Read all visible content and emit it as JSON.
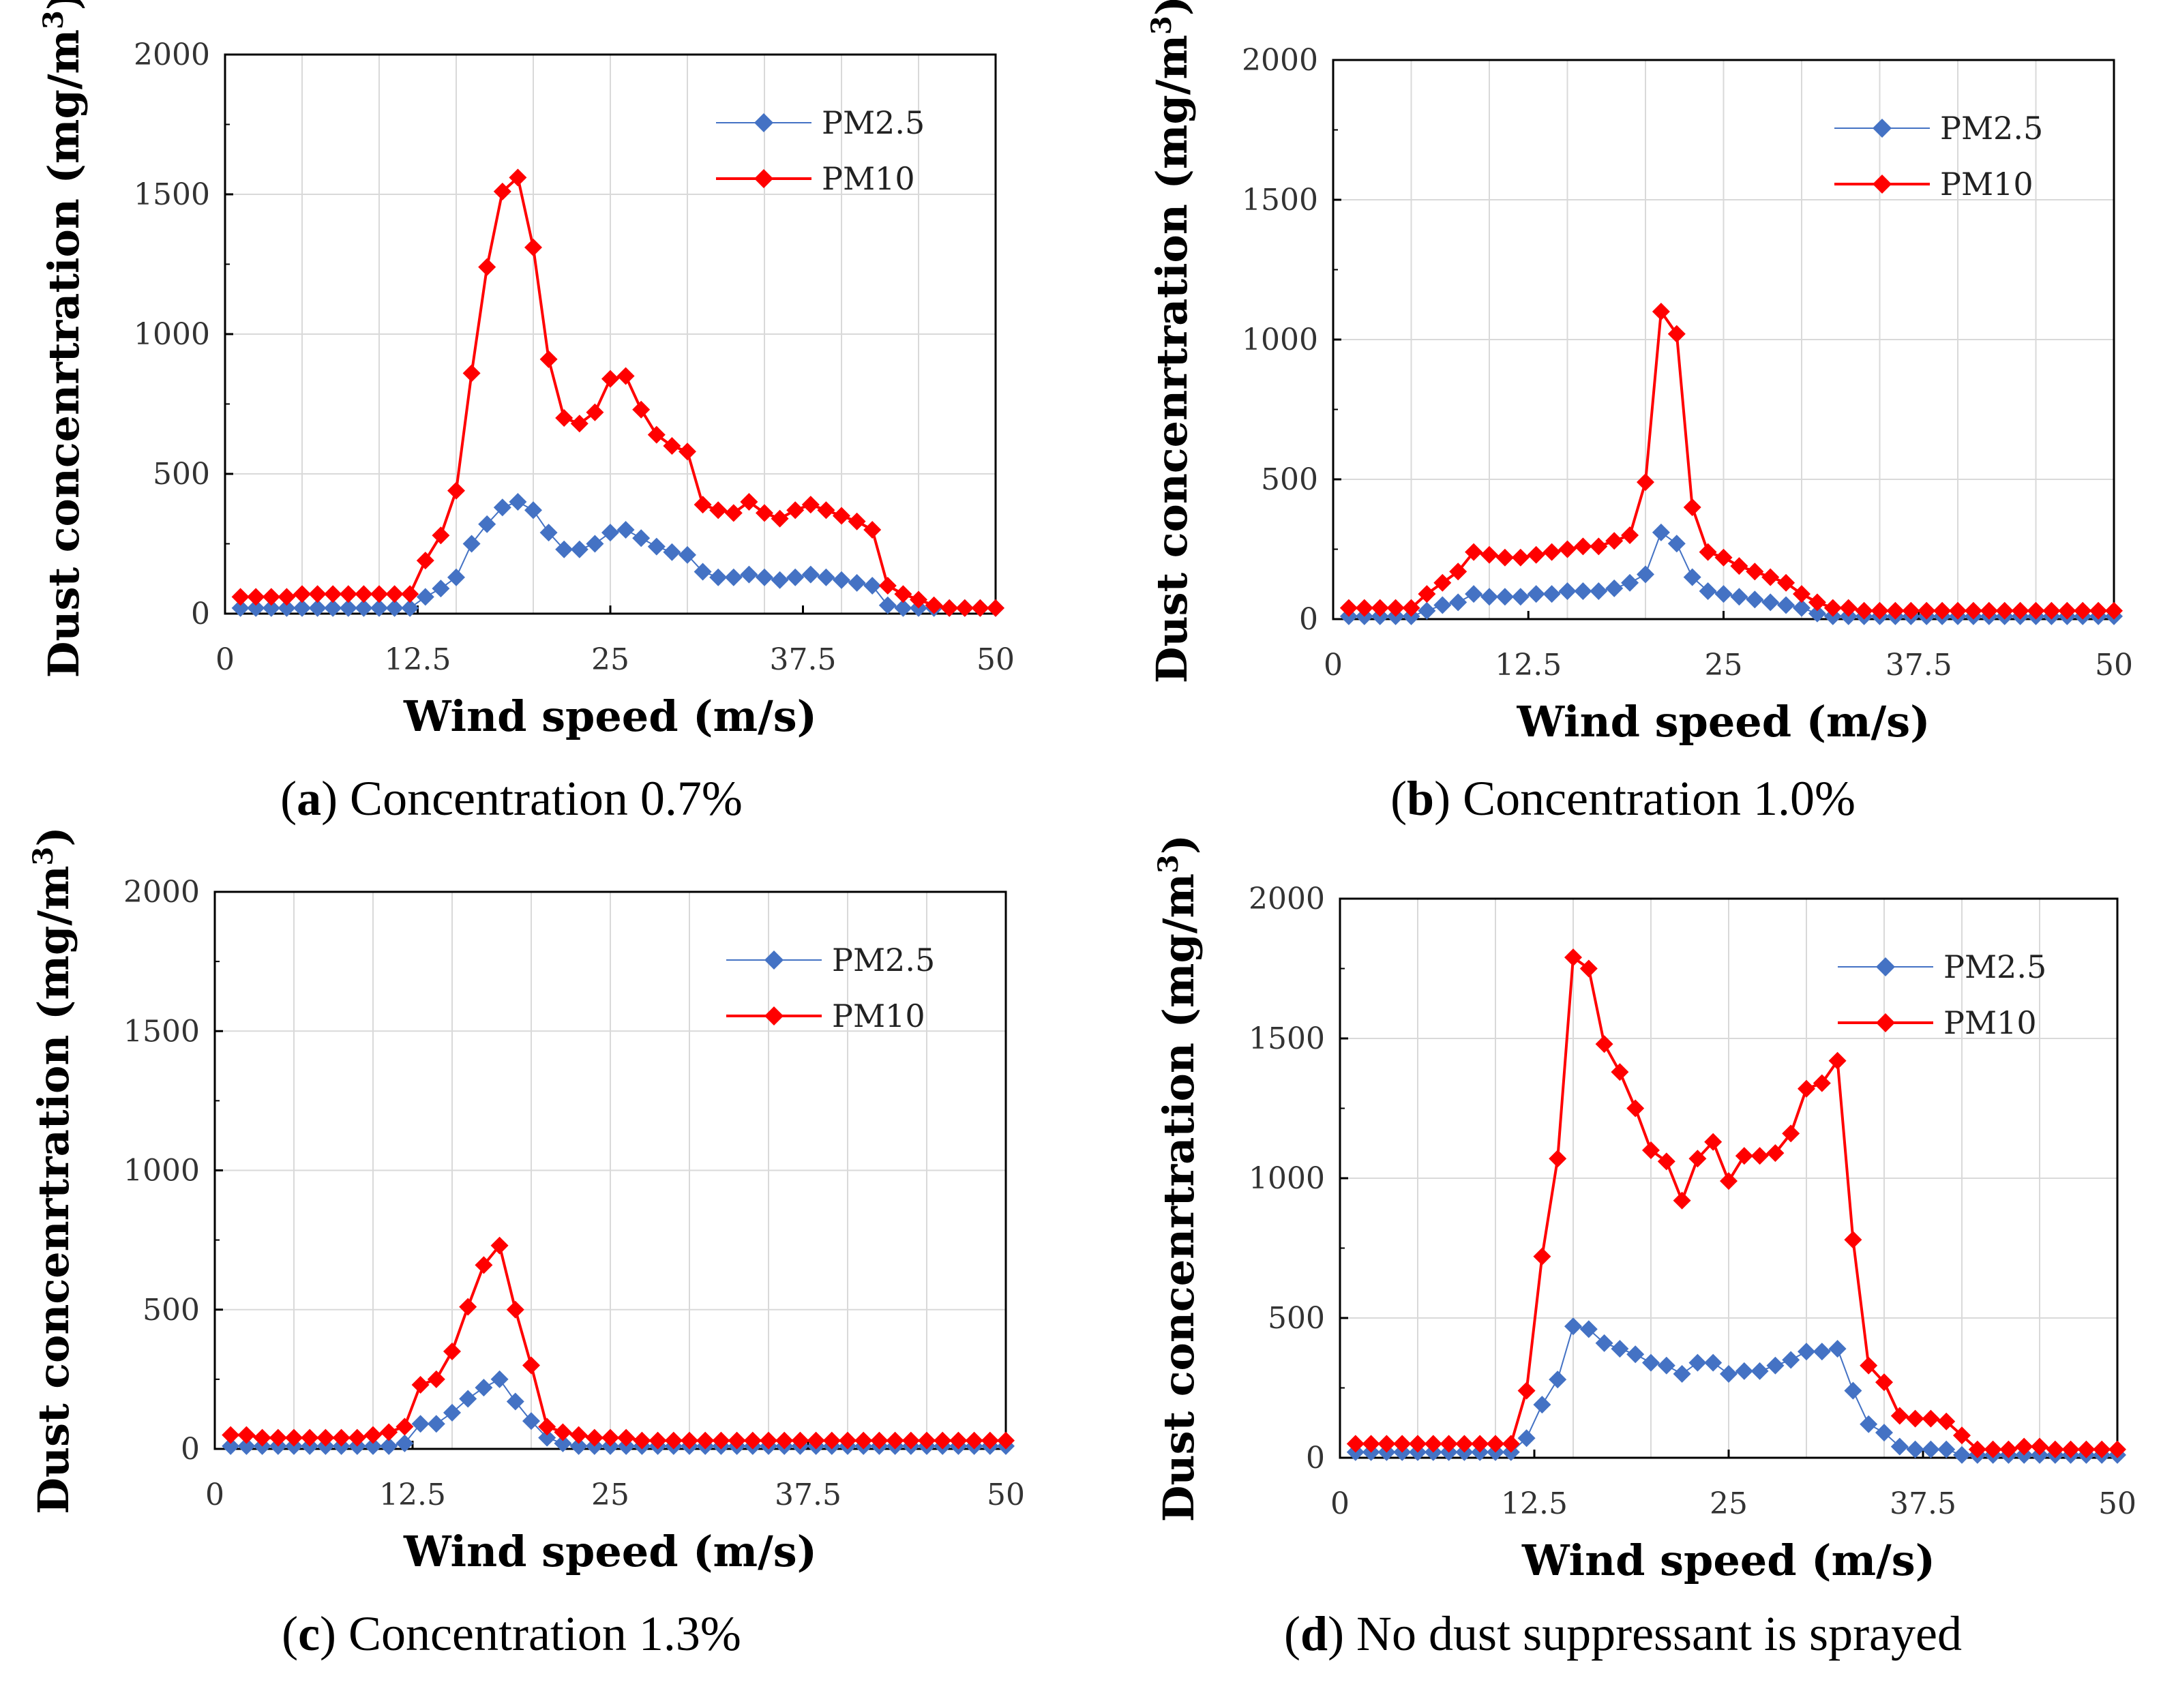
{
  "figure": {
    "colors": {
      "pm25": "#4472C4",
      "pm10": "#FF0000",
      "grid": "#d9d9d9",
      "axis": "#000000"
    }
  },
  "chart_data": [
    {
      "type": "line",
      "id": "a",
      "caption": {
        "letter": "a",
        "text": "Concentration 0.7%"
      },
      "xlabel": "Wind speed (m/s)",
      "ylabel": "Dust concenrtration (mg/m",
      "ylabel_sup": "3",
      "ylabel_close": ")",
      "xlim": [
        0,
        50
      ],
      "ylim": [
        0,
        2000
      ],
      "xticks": [
        0,
        12.5,
        25,
        37.5,
        50
      ],
      "xtick_labels": [
        "0",
        "12.5",
        "25",
        "37.5",
        "50"
      ],
      "yticks": [
        0,
        500,
        1000,
        1500,
        2000
      ],
      "ytick_labels": [
        "0",
        "500",
        "1000",
        "1500",
        "2000"
      ],
      "legend": [
        "PM2.5",
        "PM10"
      ],
      "x": [
        1,
        2,
        3,
        4,
        5,
        6,
        7,
        8,
        9,
        10,
        11,
        12,
        13,
        14,
        15,
        16,
        17,
        18,
        19,
        20,
        21,
        22,
        23,
        24,
        25,
        26,
        27,
        28,
        29,
        30,
        31,
        32,
        33,
        34,
        35,
        36,
        37,
        38,
        39,
        40,
        41,
        42,
        43,
        44,
        45,
        46,
        47,
        48,
        49,
        50
      ],
      "series": [
        {
          "name": "PM2.5",
          "values": [
            20,
            20,
            20,
            20,
            20,
            20,
            20,
            20,
            20,
            20,
            20,
            20,
            60,
            90,
            130,
            250,
            320,
            380,
            400,
            370,
            290,
            230,
            230,
            250,
            290,
            300,
            270,
            240,
            220,
            210,
            150,
            130,
            130,
            140,
            130,
            120,
            130,
            140,
            130,
            120,
            110,
            100,
            30,
            20,
            20,
            20,
            20,
            20,
            20,
            20
          ]
        },
        {
          "name": "PM10",
          "values": [
            60,
            60,
            60,
            60,
            70,
            70,
            70,
            70,
            70,
            70,
            70,
            70,
            190,
            280,
            440,
            860,
            1240,
            1510,
            1560,
            1310,
            910,
            700,
            680,
            720,
            840,
            850,
            730,
            640,
            600,
            580,
            390,
            370,
            360,
            400,
            360,
            340,
            370,
            390,
            370,
            350,
            330,
            300,
            100,
            70,
            50,
            30,
            20,
            20,
            20,
            20
          ]
        }
      ]
    },
    {
      "type": "line",
      "id": "b",
      "caption": {
        "letter": "b",
        "text": "Concentration 1.0%"
      },
      "xlabel": "Wind speed (m/s)",
      "ylabel": "Dust concenrtration (mg/m",
      "ylabel_sup": "3",
      "ylabel_close": ")",
      "xlim": [
        0,
        50
      ],
      "ylim": [
        0,
        2000
      ],
      "xticks": [
        0,
        12.5,
        25,
        37.5,
        50
      ],
      "xtick_labels": [
        "0",
        "12.5",
        "25",
        "37.5",
        "50"
      ],
      "yticks": [
        0,
        500,
        1000,
        1500,
        2000
      ],
      "ytick_labels": [
        "0",
        "500",
        "1000",
        "1500",
        "2000"
      ],
      "legend": [
        "PM2.5",
        "PM10"
      ],
      "x": [
        1,
        2,
        3,
        4,
        5,
        6,
        7,
        8,
        9,
        10,
        11,
        12,
        13,
        14,
        15,
        16,
        17,
        18,
        19,
        20,
        21,
        22,
        23,
        24,
        25,
        26,
        27,
        28,
        29,
        30,
        31,
        32,
        33,
        34,
        35,
        36,
        37,
        38,
        39,
        40,
        41,
        42,
        43,
        44,
        45,
        46,
        47,
        48,
        49,
        50
      ],
      "series": [
        {
          "name": "PM2.5",
          "values": [
            10,
            10,
            10,
            10,
            10,
            30,
            50,
            60,
            90,
            80,
            80,
            80,
            90,
            90,
            100,
            100,
            100,
            110,
            130,
            160,
            310,
            270,
            150,
            100,
            90,
            80,
            70,
            60,
            50,
            40,
            20,
            10,
            10,
            10,
            10,
            10,
            10,
            10,
            10,
            10,
            10,
            10,
            10,
            10,
            10,
            10,
            10,
            10,
            10,
            10
          ]
        },
        {
          "name": "PM10",
          "values": [
            40,
            40,
            40,
            40,
            40,
            90,
            130,
            170,
            240,
            230,
            220,
            220,
            230,
            240,
            250,
            260,
            260,
            280,
            300,
            490,
            1100,
            1020,
            400,
            240,
            220,
            190,
            170,
            150,
            130,
            90,
            60,
            40,
            40,
            30,
            30,
            30,
            30,
            30,
            30,
            30,
            30,
            30,
            30,
            30,
            30,
            30,
            30,
            30,
            30,
            30
          ]
        }
      ]
    },
    {
      "type": "line",
      "id": "c",
      "caption": {
        "letter": "c",
        "text": "Concentration 1.3%"
      },
      "xlabel": "Wind speed (m/s)",
      "ylabel": "Dust concenrtration (mg/m",
      "ylabel_sup": "3",
      "ylabel_close": ")",
      "xlim": [
        0,
        50
      ],
      "ylim": [
        0,
        2000
      ],
      "xticks": [
        0,
        12.5,
        25,
        37.5,
        50
      ],
      "xtick_labels": [
        "0",
        "12.5",
        "25",
        "37.5",
        "50"
      ],
      "yticks": [
        0,
        500,
        1000,
        1500,
        2000
      ],
      "ytick_labels": [
        "0",
        "500",
        "1000",
        "1500",
        "2000"
      ],
      "legend": [
        "PM2.5",
        "PM10"
      ],
      "x": [
        1,
        2,
        3,
        4,
        5,
        6,
        7,
        8,
        9,
        10,
        11,
        12,
        13,
        14,
        15,
        16,
        17,
        18,
        19,
        20,
        21,
        22,
        23,
        24,
        25,
        26,
        27,
        28,
        29,
        30,
        31,
        32,
        33,
        34,
        35,
        36,
        37,
        38,
        39,
        40,
        41,
        42,
        43,
        44,
        45,
        46,
        47,
        48,
        49,
        50
      ],
      "series": [
        {
          "name": "PM2.5",
          "values": [
            10,
            10,
            10,
            10,
            10,
            10,
            10,
            10,
            10,
            10,
            10,
            20,
            90,
            90,
            130,
            180,
            220,
            250,
            170,
            100,
            40,
            20,
            10,
            10,
            10,
            10,
            10,
            10,
            10,
            10,
            10,
            10,
            10,
            10,
            10,
            10,
            10,
            10,
            10,
            10,
            10,
            10,
            10,
            10,
            10,
            10,
            10,
            10,
            10,
            10
          ]
        },
        {
          "name": "PM10",
          "values": [
            50,
            50,
            40,
            40,
            40,
            40,
            40,
            40,
            40,
            50,
            60,
            80,
            230,
            250,
            350,
            510,
            660,
            730,
            500,
            300,
            80,
            60,
            50,
            40,
            40,
            40,
            30,
            30,
            30,
            30,
            30,
            30,
            30,
            30,
            30,
            30,
            30,
            30,
            30,
            30,
            30,
            30,
            30,
            30,
            30,
            30,
            30,
            30,
            30,
            30
          ]
        }
      ]
    },
    {
      "type": "line",
      "id": "d",
      "caption": {
        "letter": "d",
        "text": "No dust suppressant is sprayed"
      },
      "xlabel": "Wind speed (m/s)",
      "ylabel": "Dust concenrtration (mg/m",
      "ylabel_sup": "3",
      "ylabel_close": ")",
      "xlim": [
        0,
        50
      ],
      "ylim": [
        0,
        2000
      ],
      "xticks": [
        0,
        12.5,
        25,
        37.5,
        50
      ],
      "xtick_labels": [
        "0",
        "12.5",
        "25",
        "37.5",
        "50"
      ],
      "yticks": [
        0,
        500,
        1000,
        1500,
        2000
      ],
      "ytick_labels": [
        "0",
        "500",
        "1000",
        "1500",
        "2000"
      ],
      "legend": [
        "PM2.5",
        "PM10"
      ],
      "x": [
        1,
        2,
        3,
        4,
        5,
        6,
        7,
        8,
        9,
        10,
        11,
        12,
        13,
        14,
        15,
        16,
        17,
        18,
        19,
        20,
        21,
        22,
        23,
        24,
        25,
        26,
        27,
        28,
        29,
        30,
        31,
        32,
        33,
        34,
        35,
        36,
        37,
        38,
        39,
        40,
        41,
        42,
        43,
        44,
        45,
        46,
        47,
        48,
        49,
        50
      ],
      "series": [
        {
          "name": "PM2.5",
          "values": [
            20,
            20,
            20,
            20,
            20,
            20,
            20,
            20,
            20,
            20,
            20,
            70,
            190,
            280,
            470,
            460,
            410,
            390,
            370,
            340,
            330,
            300,
            340,
            340,
            300,
            310,
            310,
            330,
            350,
            380,
            380,
            390,
            240,
            120,
            90,
            40,
            30,
            30,
            30,
            10,
            10,
            10,
            10,
            10,
            10,
            10,
            10,
            10,
            10,
            10
          ]
        },
        {
          "name": "PM10",
          "values": [
            50,
            50,
            50,
            50,
            50,
            50,
            50,
            50,
            50,
            50,
            50,
            240,
            720,
            1070,
            1790,
            1750,
            1480,
            1380,
            1250,
            1100,
            1060,
            920,
            1070,
            1130,
            990,
            1080,
            1080,
            1090,
            1160,
            1320,
            1340,
            1420,
            780,
            330,
            270,
            150,
            140,
            140,
            130,
            80,
            30,
            30,
            30,
            40,
            40,
            30,
            30,
            30,
            30,
            30
          ]
        }
      ]
    }
  ]
}
